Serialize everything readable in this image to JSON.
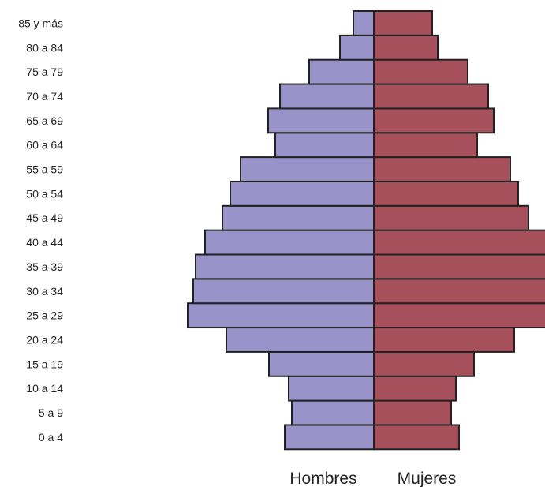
{
  "chart_data": {
    "type": "bar",
    "orientation": "horizontal",
    "layout": "population-pyramid",
    "categories": [
      "0 a 4",
      "5 a 9",
      "10 a 14",
      "15 a 19",
      "20 a 24",
      "25 a 29",
      "30 a 34",
      "35 a 39",
      "40 a 44",
      "45 a 49",
      "50 a 54",
      "55 a 59",
      "60 a 64",
      "65 a 69",
      "70 a 74",
      "75 a 79",
      "80 a 84",
      "85 y más"
    ],
    "series": [
      {
        "name": "Hombres",
        "side": "left",
        "color": "#9a93c9",
        "values": [
          113,
          104,
          108,
          133,
          187,
          236,
          229,
          226,
          214,
          192,
          182,
          169,
          125,
          134,
          119,
          82,
          43,
          26
        ]
      },
      {
        "name": "Mujeres",
        "side": "right",
        "color": "#a6505c",
        "values": [
          108,
          98,
          104,
          127,
          178,
          218,
          218,
          218,
          218,
          196,
          183,
          173,
          131,
          152,
          145,
          119,
          81,
          74
        ]
      }
    ],
    "grid": false,
    "legend": "bottom",
    "title": "",
    "xlabel": "",
    "ylabel": ""
  },
  "colors": {
    "outline": "#222222",
    "text": "#222222"
  }
}
